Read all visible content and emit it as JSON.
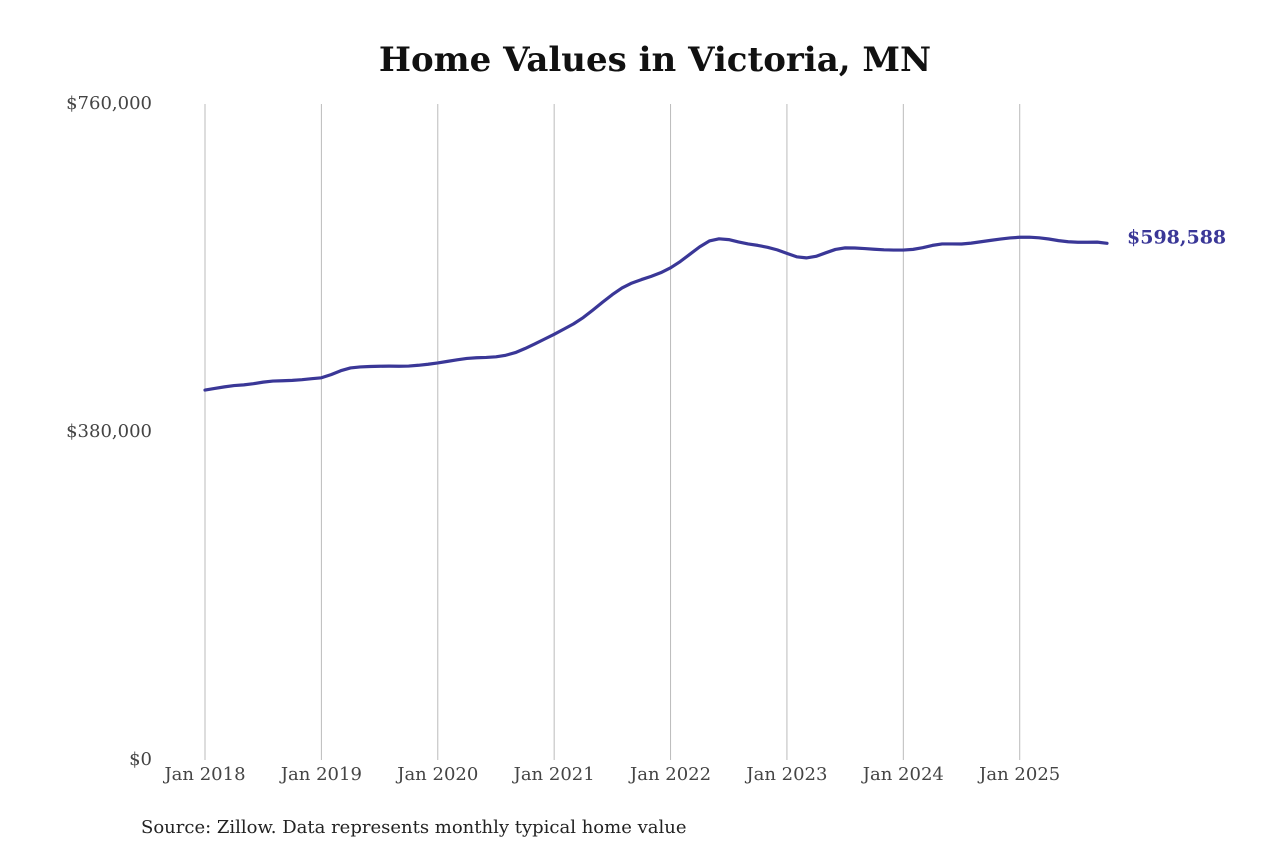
{
  "chart_data": {
    "type": "line",
    "title": "Home Values in Victoria, MN",
    "source": "Source: Zillow. Data represents monthly typical home value",
    "color": "#3a3797",
    "x": [
      "2018-01",
      "2018-02",
      "2018-03",
      "2018-04",
      "2018-05",
      "2018-06",
      "2018-07",
      "2018-08",
      "2018-09",
      "2018-10",
      "2018-11",
      "2018-12",
      "2019-01",
      "2019-02",
      "2019-03",
      "2019-04",
      "2019-05",
      "2019-06",
      "2019-07",
      "2019-08",
      "2019-09",
      "2019-10",
      "2019-11",
      "2019-12",
      "2020-01",
      "2020-02",
      "2020-03",
      "2020-04",
      "2020-05",
      "2020-06",
      "2020-07",
      "2020-08",
      "2020-09",
      "2020-10",
      "2020-11",
      "2020-12",
      "2021-01",
      "2021-02",
      "2021-03",
      "2021-04",
      "2021-05",
      "2021-06",
      "2021-07",
      "2021-08",
      "2021-09",
      "2021-10",
      "2021-11",
      "2021-12",
      "2022-01",
      "2022-02",
      "2022-03",
      "2022-04",
      "2022-05",
      "2022-06",
      "2022-07",
      "2022-08",
      "2022-09",
      "2022-10",
      "2022-11",
      "2022-12",
      "2023-01",
      "2023-02",
      "2023-03",
      "2023-04",
      "2023-05",
      "2023-06",
      "2023-07",
      "2023-08",
      "2023-09",
      "2023-10",
      "2023-11",
      "2023-12",
      "2024-01",
      "2024-02",
      "2024-03",
      "2024-04",
      "2024-05",
      "2024-06",
      "2024-07",
      "2024-08",
      "2024-09",
      "2024-10",
      "2024-11",
      "2024-12",
      "2025-01",
      "2025-02",
      "2025-03",
      "2025-04",
      "2025-05",
      "2025-06",
      "2025-07",
      "2025-08",
      "2025-09",
      "2025-10"
    ],
    "values": [
      428600,
      430500,
      432300,
      433800,
      434600,
      436000,
      437800,
      439000,
      439400,
      439800,
      440600,
      441800,
      442800,
      446500,
      451000,
      454200,
      455400,
      455900,
      456200,
      456300,
      456200,
      456400,
      457300,
      458500,
      460000,
      461800,
      463600,
      465200,
      466000,
      466400,
      467100,
      468900,
      472000,
      476700,
      482000,
      487600,
      493200,
      499200,
      505300,
      512600,
      521400,
      530500,
      539200,
      546900,
      552500,
      556600,
      560300,
      564600,
      570200,
      577500,
      586000,
      594500,
      601300,
      603800,
      602900,
      600200,
      597900,
      596200,
      594000,
      591000,
      586900,
      583000,
      581700,
      583500,
      587600,
      591500,
      593300,
      593200,
      592500,
      591700,
      591100,
      590800,
      590800,
      591600,
      593500,
      596200,
      597900,
      597900,
      597800,
      598800,
      600400,
      602000,
      603500,
      604800,
      605600,
      605700,
      605000,
      603600,
      601700,
      600400,
      599800,
      599800,
      600000,
      598588
    ],
    "value_labels": [
      null,
      null,
      null,
      null,
      null,
      null,
      null,
      null,
      null,
      null,
      null,
      null,
      null,
      null,
      null,
      null,
      null,
      null,
      null,
      null,
      null,
      null,
      null,
      null,
      null,
      null,
      null,
      null,
      null,
      null,
      null,
      null,
      null,
      null,
      null,
      null,
      null,
      null,
      null,
      null,
      null,
      null,
      null,
      null,
      null,
      null,
      null,
      null,
      null,
      null,
      null,
      null,
      null,
      null,
      null,
      null,
      null,
      null,
      null,
      null,
      null,
      null,
      null,
      null,
      null,
      null,
      null,
      null,
      null,
      null,
      null,
      null,
      null,
      null,
      null,
      null,
      null,
      null,
      null,
      null,
      null,
      null,
      null,
      null,
      null,
      null,
      null,
      null,
      null,
      null,
      null,
      null,
      null,
      "$598,588"
    ],
    "xlim": [
      "2018-01",
      "2025-10"
    ],
    "xticks": [
      {
        "value": "2018-01",
        "label": "Jan 2018"
      },
      {
        "value": "2019-01",
        "label": "Jan 2019"
      },
      {
        "value": "2020-01",
        "label": "Jan 2020"
      },
      {
        "value": "2021-01",
        "label": "Jan 2021"
      },
      {
        "value": "2022-01",
        "label": "Jan 2022"
      },
      {
        "value": "2023-01",
        "label": "Jan 2023"
      },
      {
        "value": "2024-01",
        "label": "Jan 2024"
      },
      {
        "value": "2025-01",
        "label": "Jan 2025"
      }
    ],
    "ylim": [
      0,
      760000
    ],
    "yticks": [
      {
        "value": 0,
        "label": "$0"
      },
      {
        "value": 380000,
        "label": "$380,000"
      },
      {
        "value": 760000,
        "label": "$760,000"
      }
    ],
    "grid": "x"
  }
}
